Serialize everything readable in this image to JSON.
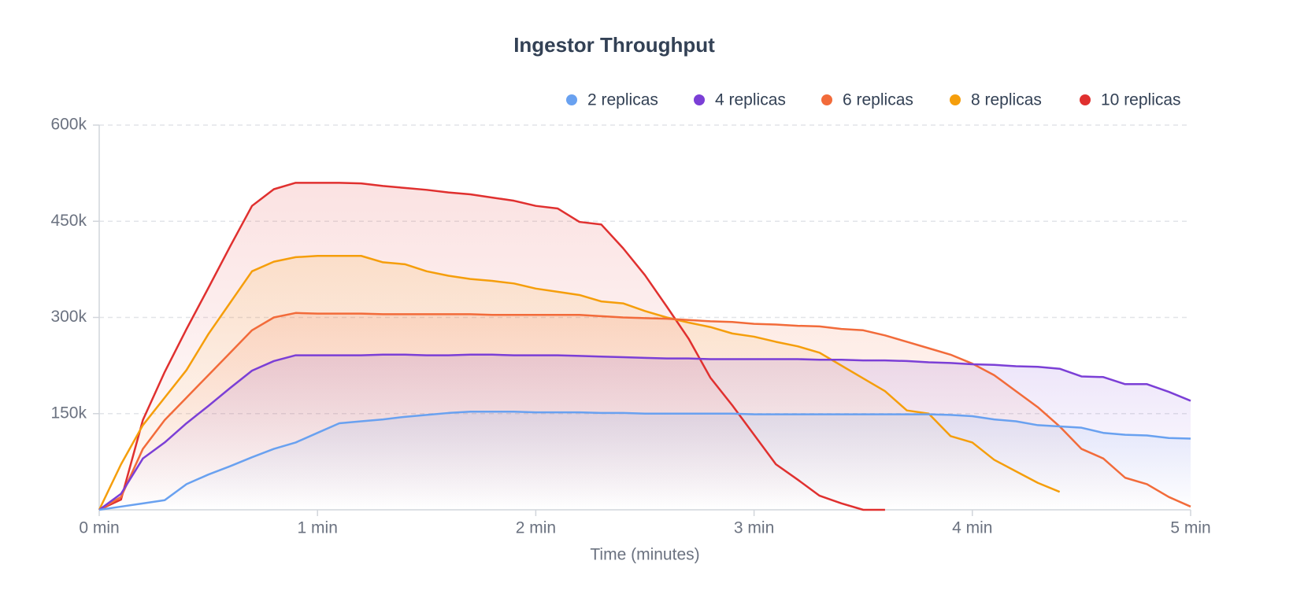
{
  "chart_data": {
    "type": "line",
    "title": "Ingestor Throughput",
    "x_label": "Time (minutes)",
    "x": [
      0,
      0.1,
      0.2,
      0.3,
      0.4,
      0.5,
      0.6,
      0.7,
      0.8,
      0.9,
      1,
      1.1,
      1.2,
      1.3,
      1.4,
      1.5,
      1.6,
      1.7,
      1.8,
      1.9,
      2,
      2.1,
      2.2,
      2.3,
      2.4,
      2.5,
      2.6,
      2.7,
      2.8,
      2.9,
      3,
      3.1,
      3.2,
      3.3,
      3.4,
      3.5,
      3.6,
      3.7,
      3.8,
      3.9,
      4,
      4.1,
      4.2,
      4.3,
      4.4,
      4.5,
      4.6,
      4.7,
      4.8,
      4.9,
      5
    ],
    "xlim": [
      0,
      5
    ],
    "xticks": [
      {
        "value": 0,
        "label": "0 min"
      },
      {
        "value": 1,
        "label": "1 min"
      },
      {
        "value": 2,
        "label": "2 min"
      },
      {
        "value": 3,
        "label": "3 min"
      },
      {
        "value": 4,
        "label": "4 min"
      },
      {
        "value": 5,
        "label": "5 min"
      }
    ],
    "ylim": [
      0,
      600000
    ],
    "yticks": [
      {
        "value": 150000,
        "label": "150k"
      },
      {
        "value": 300000,
        "label": "300k"
      },
      {
        "value": 450000,
        "label": "450k"
      },
      {
        "value": 600000,
        "label": "600k"
      }
    ],
    "grid": true,
    "legend": "top-right",
    "series": [
      {
        "name": "2 replicas",
        "color": "#69a1f0",
        "values": [
          0,
          5000,
          10000,
          15000,
          40000,
          55000,
          68000,
          82000,
          95000,
          105000,
          120000,
          135000,
          138000,
          141000,
          145000,
          148000,
          151000,
          153000,
          153000,
          153000,
          152000,
          152000,
          152000,
          151000,
          151000,
          150000,
          150000,
          150000,
          150000,
          150000,
          149000,
          149000,
          149000,
          149000,
          149000,
          149000,
          149000,
          149000,
          149000,
          148000,
          146000,
          141000,
          138000,
          132000,
          130000,
          128000,
          120000,
          117000,
          116000,
          112000,
          111000
        ]
      },
      {
        "name": "4 replicas",
        "color": "#7b3fd6",
        "values": [
          0,
          25000,
          80000,
          105000,
          135000,
          162000,
          190000,
          217000,
          232000,
          241000,
          241000,
          241000,
          241000,
          242000,
          242000,
          241000,
          241000,
          242000,
          242000,
          241000,
          241000,
          241000,
          240000,
          239000,
          238000,
          237000,
          236000,
          236000,
          235000,
          235000,
          235000,
          235000,
          235000,
          234000,
          234000,
          233000,
          233000,
          232000,
          230000,
          229000,
          227000,
          226000,
          224000,
          223000,
          220000,
          208000,
          207000,
          196000,
          196000,
          184000,
          170000
        ]
      },
      {
        "name": "6 replicas",
        "color": "#f26b3a",
        "values": [
          0,
          20000,
          95000,
          140000,
          175000,
          210000,
          245000,
          280000,
          300000,
          307000,
          306000,
          306000,
          306000,
          305000,
          305000,
          305000,
          305000,
          305000,
          304000,
          304000,
          304000,
          304000,
          304000,
          302000,
          300000,
          299000,
          298000,
          296000,
          294000,
          293000,
          290000,
          289000,
          287000,
          286000,
          282000,
          280000,
          272000,
          262000,
          252000,
          242000,
          228000,
          210000,
          185000,
          160000,
          130000,
          95000,
          80000,
          50000,
          40000,
          20000,
          5000
        ]
      },
      {
        "name": "8 replicas",
        "color": "#f59e0b",
        "values": [
          0,
          71000,
          132000,
          175000,
          218000,
          274000,
          323000,
          372000,
          387000,
          394000,
          396000,
          396000,
          396000,
          386000,
          383000,
          372000,
          365000,
          360000,
          357000,
          353000,
          345000,
          340000,
          335000,
          325000,
          322000,
          310000,
          300000,
          292000,
          285000,
          275000,
          270000,
          262000,
          255000,
          245000,
          225000,
          205000,
          185000,
          155000,
          150000,
          115000,
          105000,
          78000,
          60000,
          42000,
          28000,
          null,
          null,
          null,
          null,
          null,
          null
        ]
      },
      {
        "name": "10 replicas",
        "color": "#e0302f",
        "values": [
          0,
          16000,
          140000,
          215000,
          282000,
          346000,
          411000,
          474000,
          500000,
          510000,
          510000,
          510000,
          509000,
          505000,
          502000,
          499000,
          495000,
          492000,
          487000,
          482000,
          474000,
          470000,
          449000,
          445000,
          408000,
          366000,
          317000,
          267000,
          206000,
          163000,
          117000,
          71000,
          47000,
          22000,
          10000,
          0,
          0,
          null,
          null,
          null,
          null,
          null,
          null,
          null,
          null,
          null,
          null,
          null,
          null,
          null,
          null
        ]
      }
    ]
  }
}
